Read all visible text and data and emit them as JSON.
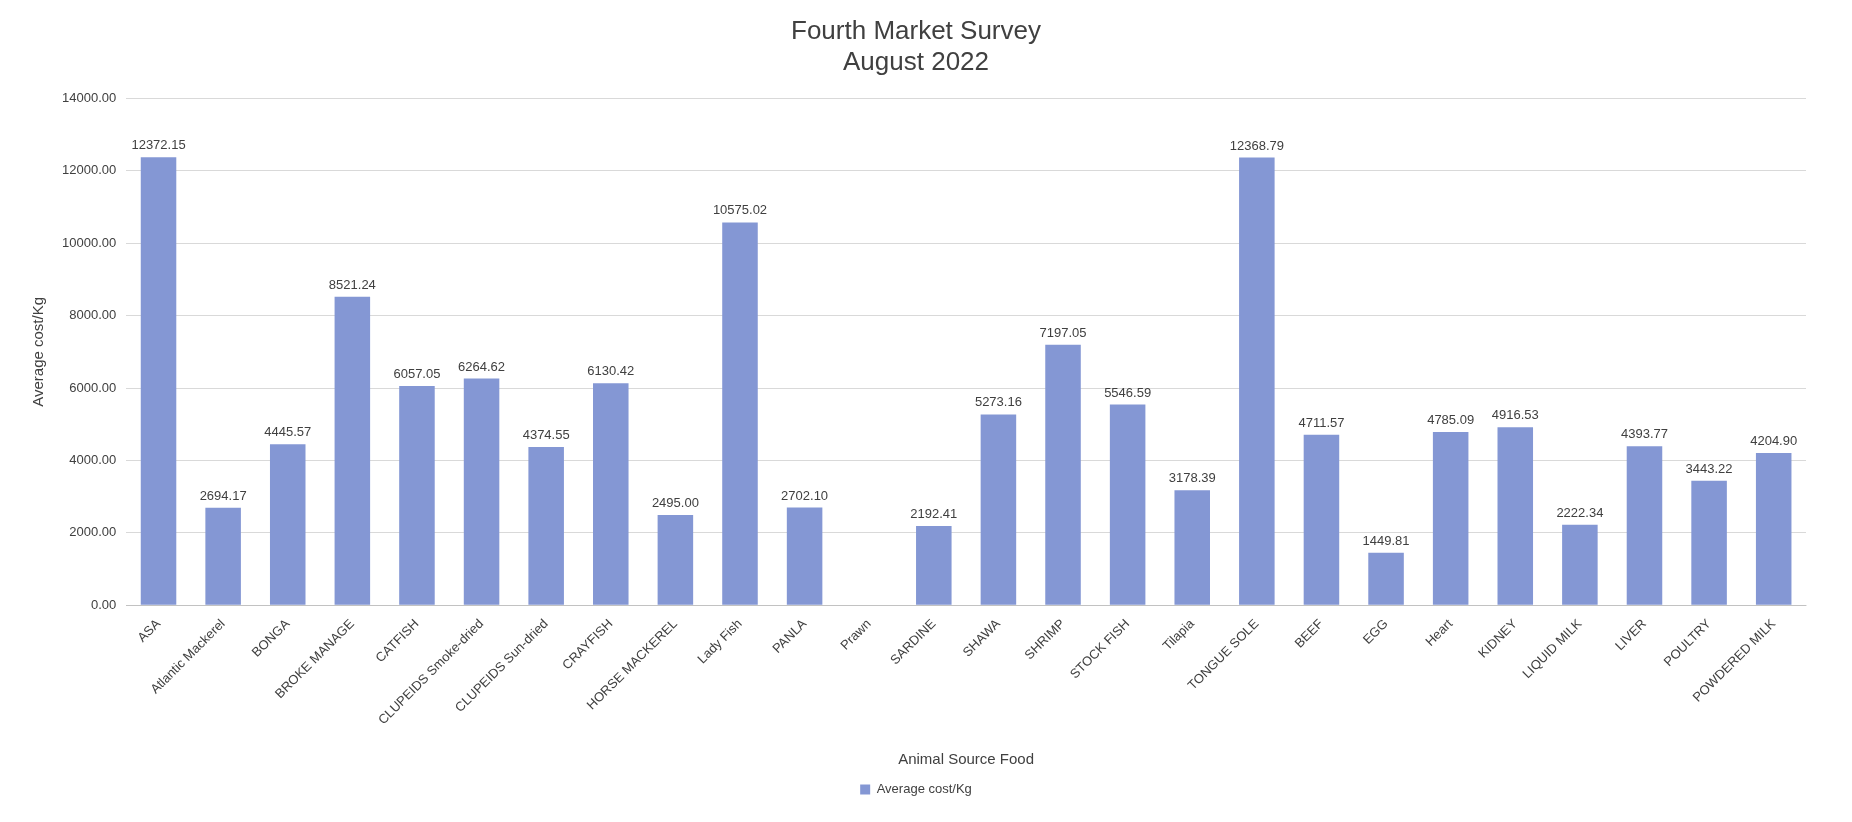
{
  "chart_data": {
    "type": "bar",
    "title": "Fourth Market Survey\nAugust 2022",
    "xlabel": "Animal Source Food",
    "ylabel": "Average cost/Kg",
    "categories": [
      "ASA",
      "Atlantic Mackerel",
      "BONGA",
      "BROKE MANAGE",
      "CATFISH",
      "CLUPEIDS Smoke-dried",
      "CLUPEIDS Sun-dried",
      "CRAYFISH",
      "HORSE MACKEREL",
      "Lady Fish",
      "PANLA",
      "Prawn",
      "SARDINE",
      "SHAWA",
      "SHRIMP",
      "STOCK FISH",
      "Tilapia",
      "TONGUE SOLE",
      "BEEF",
      "EGG",
      "Heart",
      "KIDNEY",
      "LIQUID MILK",
      "LIVER",
      "POULTRY",
      "POWDERED MILK"
    ],
    "series": [
      {
        "name": "Average cost/Kg",
        "color": "#8497d4",
        "values": [
          12372.15,
          2694.17,
          4445.57,
          8521.24,
          6057.05,
          6264.62,
          4374.55,
          6130.42,
          2495.0,
          10575.02,
          2702.1,
          null,
          2192.41,
          5273.16,
          7197.05,
          5546.59,
          3178.39,
          12368.79,
          4711.57,
          1449.81,
          4785.09,
          4916.53,
          2222.34,
          4393.77,
          3443.22,
          4204.9
        ],
        "value_labels": [
          "12372.15",
          "2694.17",
          "4445.57",
          "8521.24",
          "6057.05",
          "6264.62",
          "4374.55",
          "6130.42",
          "2495.00",
          "10575.02",
          "2702.10",
          null,
          "2192.41",
          "5273.16",
          "7197.05",
          "5546.59",
          "3178.39",
          "12368.79",
          "4711.57",
          "1449.81",
          "4785.09",
          "4916.53",
          "2222.34",
          "4393.77",
          "3443.22",
          "4204.90"
        ]
      }
    ],
    "ylim": [
      0,
      14000
    ],
    "yticks": [
      {
        "value": 0,
        "label": "0.00"
      },
      {
        "value": 2000,
        "label": "2000.00"
      },
      {
        "value": 4000,
        "label": "4000.00"
      },
      {
        "value": 6000,
        "label": "6000.00"
      },
      {
        "value": 8000,
        "label": "8000.00"
      },
      {
        "value": 10000,
        "label": "10000.00"
      },
      {
        "value": 12000,
        "label": "12000.00"
      },
      {
        "value": 14000,
        "label": "14000.00"
      }
    ],
    "grid": "y",
    "legend": "bottom"
  }
}
